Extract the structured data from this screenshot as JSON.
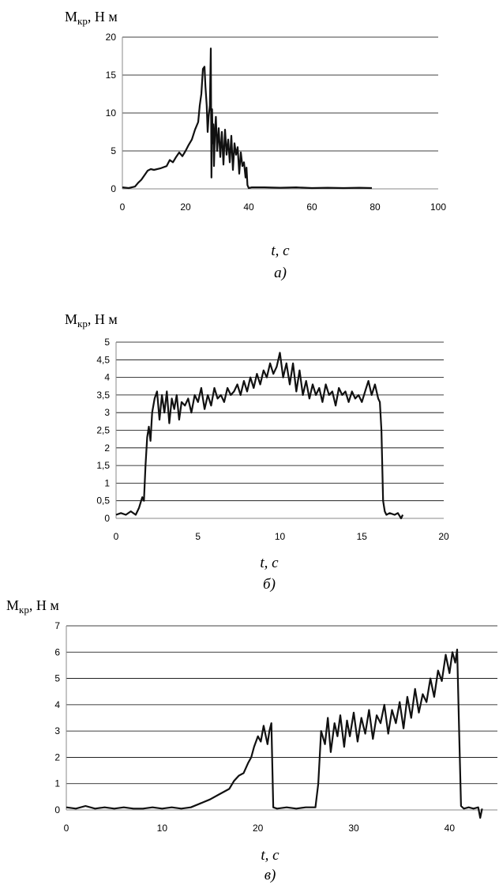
{
  "colors": {
    "line": "#111111",
    "grid": "#000000",
    "axis": "#888888"
  },
  "chart_data": [
    {
      "type": "line",
      "ylabel": {
        "main": "M",
        "sub": "кр",
        "rest": ", Н м"
      },
      "xlabel": "t, c",
      "caption": "а)",
      "xlim": [
        0,
        100
      ],
      "ylim": [
        0,
        20
      ],
      "xticks": [
        "0",
        "20",
        "40",
        "60",
        "80",
        "100"
      ],
      "yticks": [
        "0",
        "5",
        "10",
        "15",
        "20"
      ],
      "xtick_values": [
        0,
        20,
        40,
        60,
        80,
        100
      ],
      "ytick_values": [
        0,
        5,
        10,
        15,
        20
      ],
      "series": [
        {
          "x": [
            0,
            2,
            4,
            5,
            6,
            7,
            8,
            9,
            10,
            12,
            14,
            15,
            16,
            17,
            18,
            19,
            20,
            21,
            22,
            23,
            24,
            24.5,
            25,
            25.5,
            26,
            26.3,
            26.7,
            27,
            27.3,
            27.7,
            28,
            28.2,
            28.4,
            28.6,
            28.8,
            29,
            29.3,
            29.6,
            30,
            30.5,
            31,
            31.5,
            32,
            32.5,
            33,
            33.5,
            34,
            34.5,
            35,
            35.5,
            36,
            36.5,
            37,
            37.5,
            38,
            38.5,
            39,
            39.3,
            39.6,
            40,
            41,
            45,
            50,
            55,
            60,
            65,
            70,
            75,
            79
          ],
          "y": [
            0.2,
            0.1,
            0.3,
            0.8,
            1.2,
            1.8,
            2.4,
            2.6,
            2.5,
            2.7,
            3,
            3.8,
            3.5,
            4.2,
            4.8,
            4.3,
            5,
            5.8,
            6.5,
            7.8,
            8.8,
            11,
            12.5,
            15.8,
            16.1,
            13.5,
            11,
            7.5,
            9.5,
            11,
            18.5,
            1.5,
            10.5,
            6,
            8.5,
            3,
            7.5,
            9.5,
            5,
            8,
            4.2,
            7.5,
            3.2,
            7.8,
            4.5,
            6.5,
            3.5,
            7,
            2.5,
            6,
            4.5,
            5.5,
            2,
            4.8,
            3,
            3.5,
            1.5,
            2.8,
            0.5,
            0.1,
            0.2,
            0.2,
            0.15,
            0.2,
            0.1,
            0.15,
            0.1,
            0.15,
            0.1
          ]
        }
      ]
    },
    {
      "type": "line",
      "ylabel": {
        "main": "M",
        "sub": "кр",
        "rest": ", Н м"
      },
      "xlabel": "t, c",
      "caption": "б)",
      "xlim": [
        0,
        20
      ],
      "ylim": [
        0,
        5
      ],
      "xticks": [
        "0",
        "5",
        "10",
        "15",
        "20"
      ],
      "yticks": [
        "0",
        "0,5",
        "1",
        "1,5",
        "2",
        "2,5",
        "3",
        "3,5",
        "4",
        "4,5",
        "5"
      ],
      "xtick_values": [
        0,
        5,
        10,
        15,
        20
      ],
      "ytick_values": [
        0,
        0.5,
        1,
        1.5,
        2,
        2.5,
        3,
        3.5,
        4,
        4.5,
        5
      ],
      "series": [
        {
          "x": [
            0,
            0.3,
            0.6,
            0.9,
            1.2,
            1.4,
            1.6,
            1.7,
            1.8,
            1.9,
            2,
            2.1,
            2.2,
            2.35,
            2.5,
            2.65,
            2.8,
            2.95,
            3.1,
            3.25,
            3.4,
            3.55,
            3.7,
            3.85,
            4,
            4.2,
            4.4,
            4.6,
            4.8,
            5,
            5.2,
            5.4,
            5.6,
            5.8,
            6,
            6.2,
            6.4,
            6.6,
            6.8,
            7,
            7.2,
            7.4,
            7.6,
            7.8,
            8,
            8.2,
            8.4,
            8.6,
            8.8,
            9,
            9.2,
            9.4,
            9.6,
            9.8,
            10,
            10.2,
            10.4,
            10.6,
            10.8,
            11,
            11.2,
            11.4,
            11.6,
            11.8,
            12,
            12.2,
            12.4,
            12.6,
            12.8,
            13,
            13.2,
            13.4,
            13.6,
            13.8,
            14,
            14.2,
            14.4,
            14.6,
            14.8,
            15,
            15.2,
            15.4,
            15.6,
            15.8,
            16,
            16.1,
            16.2,
            16.3,
            16.4,
            16.5,
            16.7,
            17,
            17.2,
            17.4,
            17.5
          ],
          "y": [
            0.1,
            0.15,
            0.1,
            0.2,
            0.1,
            0.3,
            0.6,
            0.5,
            1.5,
            2.3,
            2.6,
            2.2,
            3,
            3.4,
            3.6,
            2.8,
            3.5,
            3,
            3.6,
            2.7,
            3.4,
            3.1,
            3.5,
            2.8,
            3.3,
            3.2,
            3.4,
            3,
            3.5,
            3.3,
            3.7,
            3.1,
            3.5,
            3.2,
            3.7,
            3.4,
            3.5,
            3.3,
            3.7,
            3.5,
            3.6,
            3.8,
            3.5,
            3.9,
            3.6,
            4,
            3.7,
            4.1,
            3.8,
            4.2,
            4,
            4.4,
            4.1,
            4.3,
            4.7,
            4,
            4.4,
            3.8,
            4.4,
            3.6,
            4.2,
            3.5,
            3.9,
            3.4,
            3.8,
            3.5,
            3.7,
            3.3,
            3.8,
            3.5,
            3.6,
            3.2,
            3.7,
            3.5,
            3.6,
            3.3,
            3.6,
            3.4,
            3.5,
            3.3,
            3.6,
            3.9,
            3.5,
            3.8,
            3.4,
            3.3,
            2.5,
            0.5,
            0.2,
            0.1,
            0.15,
            0.1,
            0.15,
            0,
            0.1
          ]
        }
      ]
    },
    {
      "type": "line",
      "ylabel": {
        "main": "M",
        "sub": "кр",
        "rest": ", Н м"
      },
      "xlabel": "t, c",
      "caption": "в)",
      "xlim": [
        0,
        45
      ],
      "ylim": [
        0,
        7
      ],
      "xticks": [
        "0",
        "10",
        "20",
        "30",
        "40"
      ],
      "yticks": [
        "0",
        "1",
        "2",
        "3",
        "4",
        "5",
        "6",
        "7"
      ],
      "xtick_values": [
        0,
        10,
        20,
        30,
        40
      ],
      "ytick_values": [
        0,
        1,
        2,
        3,
        4,
        5,
        6,
        7
      ],
      "series": [
        {
          "x": [
            0,
            1,
            2,
            3,
            4,
            5,
            6,
            7,
            8,
            9,
            10,
            11,
            12,
            13,
            14,
            15,
            16,
            17,
            17.5,
            18,
            18.5,
            19,
            19.3,
            19.6,
            20,
            20.3,
            20.6,
            21,
            21.2,
            21.4,
            21.6,
            22,
            23,
            24,
            25,
            26,
            26.3,
            26.6,
            27,
            27.3,
            27.6,
            28,
            28.3,
            28.6,
            29,
            29.3,
            29.6,
            30,
            30.4,
            30.8,
            31.2,
            31.6,
            32,
            32.4,
            32.8,
            33.2,
            33.6,
            34,
            34.4,
            34.8,
            35.2,
            35.6,
            36,
            36.4,
            36.8,
            37.2,
            37.6,
            38,
            38.4,
            38.8,
            39.2,
            39.6,
            40,
            40.3,
            40.6,
            40.8,
            41,
            41.2,
            41.5,
            42,
            42.5,
            43,
            43.2,
            43.4
          ],
          "y": [
            0.1,
            0.05,
            0.15,
            0.05,
            0.1,
            0.05,
            0.1,
            0.05,
            0.05,
            0.1,
            0.05,
            0.1,
            0.05,
            0.1,
            0.25,
            0.4,
            0.6,
            0.8,
            1.1,
            1.3,
            1.4,
            1.8,
            2,
            2.4,
            2.8,
            2.6,
            3.2,
            2.5,
            3,
            3.3,
            0.1,
            0.05,
            0.1,
            0.05,
            0.1,
            0.1,
            1,
            3,
            2.5,
            3.5,
            2.2,
            3.3,
            2.8,
            3.6,
            2.4,
            3.4,
            2.8,
            3.7,
            2.6,
            3.5,
            2.9,
            3.8,
            2.7,
            3.6,
            3.3,
            4,
            2.9,
            3.8,
            3.3,
            4.1,
            3.1,
            4.3,
            3.5,
            4.6,
            3.7,
            4.4,
            4.1,
            5,
            4.3,
            5.3,
            4.9,
            5.9,
            5.2,
            6,
            5.6,
            6.1,
            3,
            0.15,
            0.05,
            0.1,
            0.05,
            0.1,
            -0.3,
            0.05
          ]
        }
      ]
    }
  ]
}
